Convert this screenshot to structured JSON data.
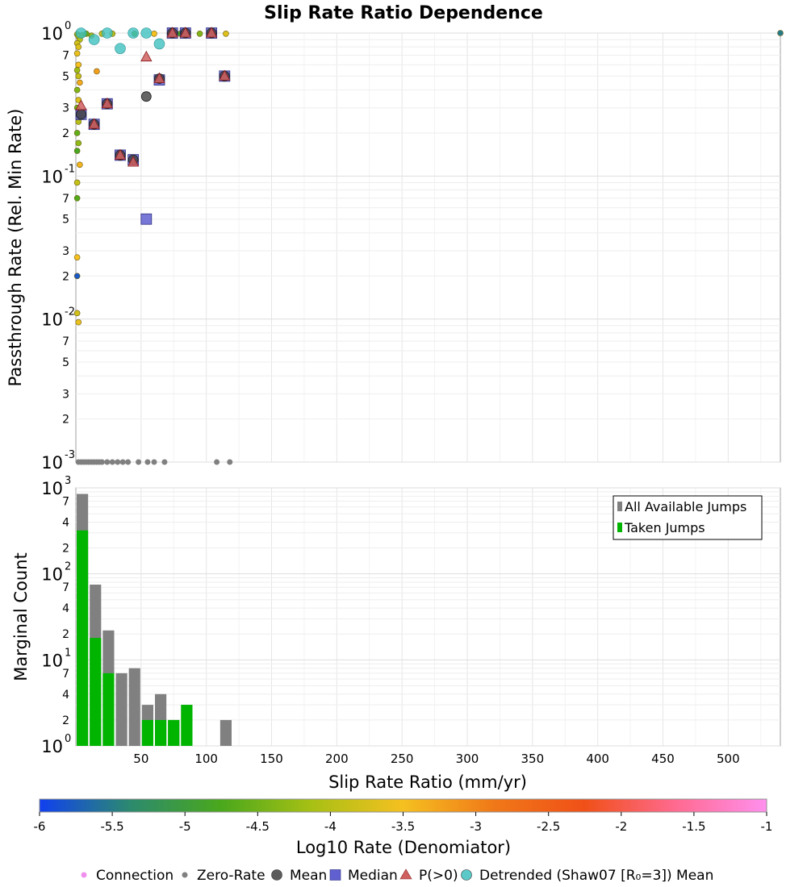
{
  "chart_data": {
    "type": "scatter",
    "title": "Slip Rate Ratio Dependence",
    "xlabel": "Slip Rate Ratio (mm/yr)",
    "x_ticks": [
      "50",
      "100",
      "150",
      "200",
      "250",
      "300",
      "350",
      "400",
      "450",
      "500"
    ],
    "x_tick_values": [
      50,
      100,
      150,
      200,
      250,
      300,
      350,
      400,
      450,
      500
    ],
    "xlim": [
      0,
      540
    ],
    "scatter_panel": {
      "ylabel": "Passthrough Rate (Rel. Min Rate)",
      "ylim_log10": [
        -3,
        0
      ],
      "decade_labels": [
        {
          "base": "10",
          "exp": "0"
        },
        {
          "base": "10",
          "exp": "-1"
        },
        {
          "base": "10",
          "exp": "-2"
        },
        {
          "base": "10",
          "exp": "-3"
        }
      ],
      "minor_labels": [
        "7",
        "5",
        "3",
        "2"
      ],
      "connection_points": [
        [
          1,
          0.98,
          -4.3
        ],
        [
          2,
          0.95,
          -4.1
        ],
        [
          3,
          0.9,
          -4.0
        ],
        [
          1,
          0.85,
          -3.8
        ],
        [
          2,
          0.8,
          -3.7
        ],
        [
          1,
          0.72,
          -3.6
        ],
        [
          2,
          0.6,
          -3.5
        ],
        [
          1,
          0.55,
          -4.2
        ],
        [
          2,
          0.5,
          -3.9
        ],
        [
          3,
          0.45,
          -3.3
        ],
        [
          1,
          0.4,
          -4.4
        ],
        [
          2,
          0.34,
          -3.7
        ],
        [
          1,
          0.3,
          -4.5
        ],
        [
          3,
          0.27,
          -3.6
        ],
        [
          2,
          0.24,
          -4.0
        ],
        [
          1,
          0.2,
          -4.6
        ],
        [
          2,
          0.17,
          -4.3
        ],
        [
          1,
          0.15,
          -4.8
        ],
        [
          3,
          0.12,
          -3.4
        ],
        [
          1,
          0.09,
          -3.9
        ],
        [
          1,
          0.07,
          -4.7
        ],
        [
          1,
          0.027,
          -3.5
        ],
        [
          1,
          0.02,
          -5.8
        ],
        [
          1,
          0.011,
          -3.8
        ],
        [
          2,
          0.0095,
          -3.6
        ],
        [
          5,
          0.97,
          -4.4
        ],
        [
          8,
          0.99,
          -4.6
        ],
        [
          12,
          0.96,
          -4.2
        ],
        [
          16,
          0.54,
          -3.2
        ],
        [
          20,
          0.99,
          -3.9
        ],
        [
          28,
          0.99,
          -4.0
        ],
        [
          45,
          0.99,
          -4.6
        ],
        [
          60,
          0.99,
          -3.5
        ],
        [
          72,
          0.99,
          -5.2
        ],
        [
          80,
          0.99,
          -4.8
        ],
        [
          95,
          0.99,
          -4.4
        ],
        [
          115,
          0.99,
          -3.7
        ],
        [
          540,
          1.0,
          -5.5
        ]
      ],
      "zero_rate_x": [
        2,
        4,
        6,
        8,
        10,
        12,
        14,
        16,
        18,
        20,
        24,
        28,
        32,
        36,
        40,
        48,
        55,
        60,
        68,
        108,
        118
      ],
      "mean_points": [
        [
          4,
          0.27
        ],
        [
          14,
          0.23
        ],
        [
          24,
          0.32
        ],
        [
          34,
          0.14
        ],
        [
          44,
          0.13
        ],
        [
          54,
          0.36
        ],
        [
          64,
          0.48
        ],
        [
          74,
          1.0
        ],
        [
          84,
          1.0
        ],
        [
          104,
          1.0
        ],
        [
          114,
          0.5
        ]
      ],
      "median_points": [
        [
          4,
          0.27
        ],
        [
          14,
          0.23
        ],
        [
          24,
          0.32
        ],
        [
          34,
          0.14
        ],
        [
          44,
          0.13
        ],
        [
          54,
          0.05
        ],
        [
          64,
          0.47
        ],
        [
          74,
          1.0
        ],
        [
          84,
          1.0
        ],
        [
          104,
          1.0
        ],
        [
          114,
          0.5
        ]
      ],
      "pgt0_points": [
        [
          4,
          0.31
        ],
        [
          14,
          0.23
        ],
        [
          24,
          0.32
        ],
        [
          34,
          0.14
        ],
        [
          44,
          0.125
        ],
        [
          54,
          0.68
        ],
        [
          64,
          0.48
        ],
        [
          74,
          1.0
        ],
        [
          84,
          1.0
        ],
        [
          104,
          1.0
        ],
        [
          114,
          0.5
        ]
      ],
      "detrended_points": [
        [
          4,
          1.0
        ],
        [
          14,
          0.9
        ],
        [
          24,
          1.0
        ],
        [
          34,
          0.78
        ],
        [
          44,
          1.0
        ],
        [
          54,
          1.0
        ],
        [
          64,
          0.84
        ]
      ]
    },
    "histogram_panel": {
      "ylabel": "Marginal Count",
      "ylim_log10": [
        0,
        3
      ],
      "decade_labels": [
        {
          "base": "10",
          "exp": "3"
        },
        {
          "base": "10",
          "exp": "2"
        },
        {
          "base": "10",
          "exp": "1"
        },
        {
          "base": "10",
          "exp": "0"
        }
      ],
      "minor_labels": [
        "7",
        "4",
        "2"
      ],
      "bin_width": 10,
      "bin_starts": [
        0,
        10,
        20,
        30,
        40,
        50,
        60,
        70,
        80,
        90,
        100,
        110
      ],
      "all_available": [
        850,
        75,
        22,
        7,
        8,
        3,
        4,
        2,
        3,
        0,
        0,
        2
      ],
      "taken": [
        320,
        18,
        7,
        0,
        0,
        2,
        2,
        2,
        3,
        0,
        0,
        0
      ],
      "legend": [
        "All Available Jumps",
        "Taken Jumps"
      ]
    },
    "colorbar": {
      "label": "Log10 Rate (Denomiator)",
      "range": [
        -6,
        -1
      ],
      "ticks": [
        "-6",
        "-5.5",
        "-5",
        "-4.5",
        "-4",
        "-3.5",
        "-3",
        "-2.5",
        "-2",
        "-1.5",
        "-1"
      ],
      "stops": [
        "#1040f0",
        "#2c8a6e",
        "#4aa81c",
        "#a8c014",
        "#f5c020",
        "#f07818",
        "#f05018",
        "#ff6a90",
        "#ff90ee"
      ]
    },
    "legend": [
      "Connection",
      "Zero-Rate",
      "Mean",
      "Median",
      "P(>0)",
      "Detrended (Shaw07 [R₀=3]) Mean"
    ]
  },
  "colors": {
    "connection": "#f090ee",
    "zero_rate": "#808080",
    "mean": "#404040",
    "median": "#6060d0",
    "median_inner": "#303080",
    "pgt0": "#d06060",
    "pgt0_inner": "#8a1a1a",
    "detrended": "#40c0c0",
    "all_available": "#808080",
    "taken": "#00b400"
  }
}
